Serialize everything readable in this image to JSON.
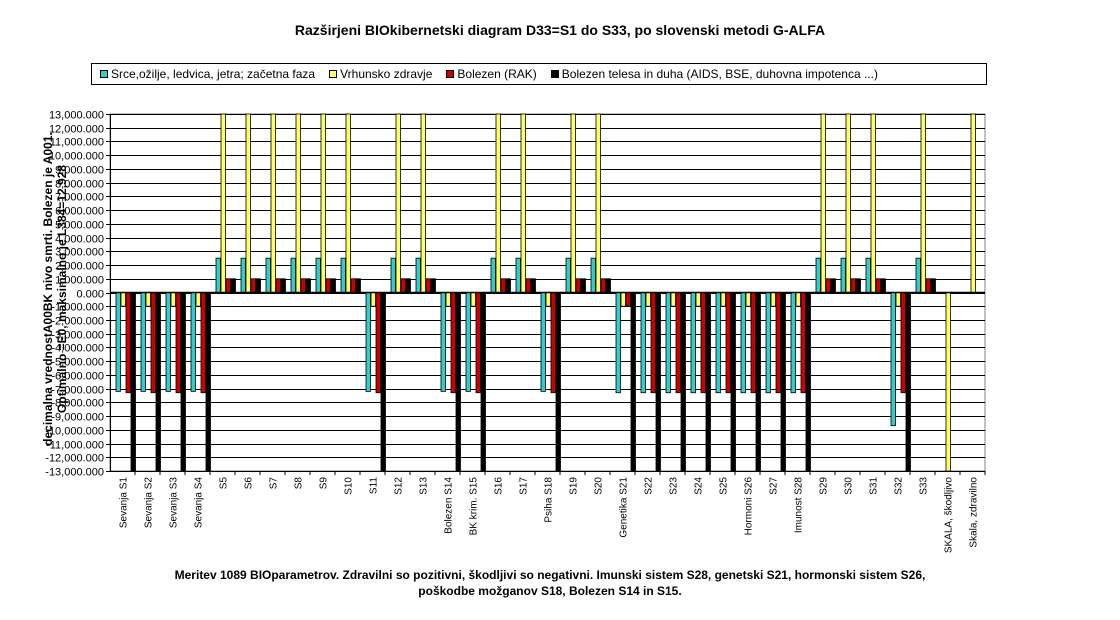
{
  "chart_data": {
    "type": "bar",
    "title": "Razširjeni BIOkibernetski diagram  D33=S1 do S33, po slovenski metodi G-ALFA",
    "ylabel_line1": "decimalna vrednostA00BK nivo smrti. Bolezen je A001.",
    "ylabel_line2": "Optimalno =E0, maksimalno je L384=12,928",
    "xlabel": "",
    "ylim": [
      -13000,
      13000
    ],
    "ytick_step": 1000,
    "grid": "horizontal",
    "legend_position": "top",
    "categories": [
      "Sevanja S1",
      "Sevanja S2",
      "Sevanja S3",
      "Sevanja S4",
      "S5",
      "S6",
      "S7",
      "S8",
      "S9",
      "S10",
      "S11",
      "S12",
      "S13",
      "Bolezen S14",
      "BK krim. S15",
      "S16",
      "S17",
      "Psiha S18",
      "S19",
      "S20",
      "Genetika S21",
      "S22",
      "S23",
      "S24",
      "S25",
      "Hormoni S26",
      "S27",
      "Imunost S28",
      "S29",
      "S30",
      "S31",
      "S32",
      "S33",
      "SKALA, škodljivo",
      "Skala, zdravilno"
    ],
    "series": [
      {
        "name": "Srce,ožilje, ledvica, jetra; začetna faza",
        "color": "#33CCCC",
        "values": [
          -7200,
          -7200,
          -7200,
          -7200,
          2500,
          2500,
          2500,
          2500,
          2500,
          2500,
          -7200,
          2500,
          2500,
          -7200,
          -7200,
          2500,
          2500,
          -7200,
          2500,
          2500,
          -7300,
          -7300,
          -7300,
          -7300,
          -7300,
          -7300,
          -7300,
          -7300,
          2500,
          2500,
          2500,
          -9700,
          2500,
          0,
          0
        ]
      },
      {
        "name": "Vrhunsko zdravje",
        "color": "#FFFF66",
        "values": [
          -1000,
          -1000,
          -1000,
          -1000,
          13000,
          13000,
          13000,
          13000,
          13000,
          13000,
          -1000,
          13000,
          13000,
          -1000,
          -1000,
          13000,
          13000,
          -1000,
          13000,
          13000,
          -1000,
          -1000,
          -1000,
          -1000,
          -1000,
          -1000,
          -1000,
          -1000,
          13000,
          13000,
          13000,
          -1000,
          13000,
          -13000,
          13000
        ]
      },
      {
        "name": "Bolezen (RAK)",
        "color": "#CC0000",
        "values": [
          -7300,
          -7300,
          -7300,
          -7300,
          1000,
          1000,
          1000,
          1000,
          1000,
          1000,
          -7300,
          1000,
          1000,
          -7300,
          -7300,
          1000,
          1000,
          -7300,
          1000,
          1000,
          -1000,
          -7300,
          -7300,
          -7300,
          -7300,
          -7300,
          -7300,
          -7300,
          1000,
          1000,
          1000,
          -7300,
          1000,
          0,
          0
        ]
      },
      {
        "name": "Bolezen telesa in duha (AIDS, BSE, duhovna impotenca ...)",
        "color": "#000000",
        "values": [
          -13000,
          -13000,
          -13000,
          -13000,
          1000,
          1000,
          1000,
          1000,
          1000,
          1000,
          -13000,
          1000,
          1000,
          -13000,
          -13000,
          1000,
          1000,
          -13000,
          1000,
          1000,
          -13000,
          -13000,
          -13000,
          -13000,
          -13000,
          -13000,
          -13000,
          -13000,
          1000,
          1000,
          1000,
          -13000,
          1000,
          0,
          0
        ]
      }
    ],
    "category_labels_shown": [
      "Sevanja S1",
      "Sevanja S2",
      "Sevanja S3",
      "Sevanja S4",
      "S5",
      "S6",
      "S7",
      "S8",
      "S9",
      "S10",
      "S11",
      "S12",
      "S13",
      "Bolezen S14",
      "BK krim. S15",
      "S16",
      "S17",
      "Psiha S18",
      "S19",
      "S20",
      "Genetika S21",
      "S22",
      "S23",
      "S24",
      "S25",
      "Hormoni S26",
      "S27",
      "Imunost S28",
      "S29",
      "S30",
      "S31",
      "S32",
      "S33",
      "SKALA, škodljivo",
      "Skala, zdravilno"
    ]
  },
  "footnote_line1": "Meritev 1089 BIOparametrov. Zdravilni so pozitivni, škodljivi so negativni. Imunski sistem S28, genetski S21, hormonski sistem S26,",
  "footnote_line2": "poškodbe možganov S18, Bolezen S14 in S15."
}
